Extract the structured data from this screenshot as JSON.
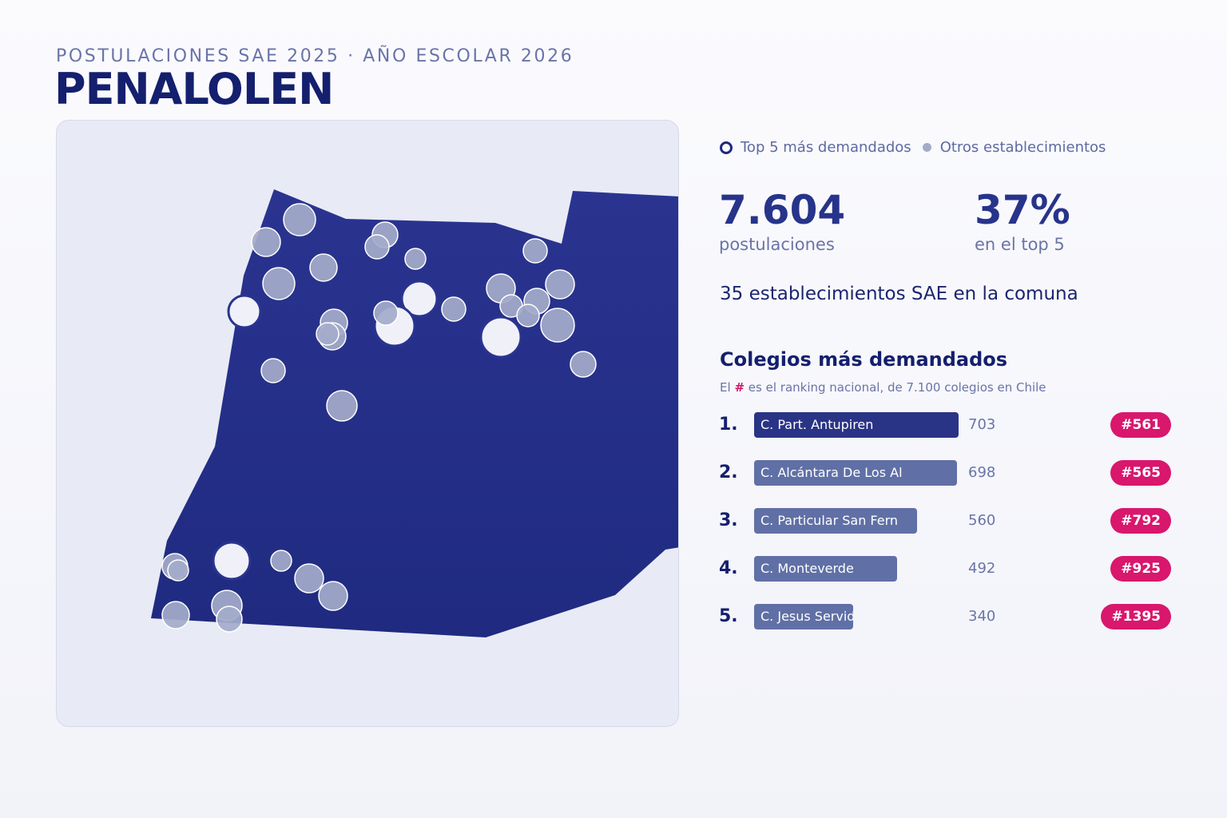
{
  "header": {
    "eyebrow": "POSTULACIONES SAE 2025 · AÑO ESCOLAR 2026",
    "title": "PENALOLEN"
  },
  "legend": {
    "top5_label": "Top 5 más demandados",
    "others_label": "Otros establecimientos"
  },
  "stats": {
    "applications_value": "7.604",
    "applications_label": "postulaciones",
    "top5_share_value": "37%",
    "top5_share_label": "en el top 5",
    "establishments_text": "35 establecimientos SAE en la comuna"
  },
  "ranking": {
    "title": "Colegios más demandados",
    "note_prefix": "El",
    "note_hash": "#",
    "note_suffix": "es el ranking nacional, de 7.100 colegios en Chile",
    "max_value": 703,
    "items": [
      {
        "rank": "1.",
        "name": "C. Part. Antupiren",
        "value": 703,
        "value_label": "703",
        "badge": "#561"
      },
      {
        "rank": "2.",
        "name": "C. Alcántara De Los Al",
        "value": 698,
        "value_label": "698",
        "badge": "#565"
      },
      {
        "rank": "3.",
        "name": "C. Particular San Fern",
        "value": 560,
        "value_label": "560",
        "badge": "#792"
      },
      {
        "rank": "4.",
        "name": "C. Monteverde",
        "value": 492,
        "value_label": "492",
        "badge": "#925"
      },
      {
        "rank": "5.",
        "name": "C. Jesus Servido",
        "value": 340,
        "value_label": "340",
        "badge": "#1395"
      }
    ]
  },
  "colors": {
    "region_fill": "#232d86",
    "top5_marker": "#f0f1f8",
    "other_marker": "#a4abca",
    "badge": "#d8176d",
    "accent": "#27348b"
  }
}
